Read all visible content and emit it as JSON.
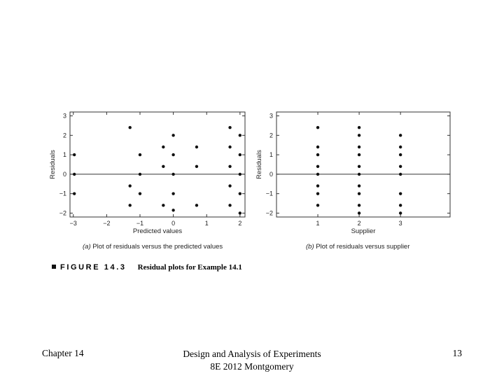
{
  "chart_data": [
    {
      "type": "scatter",
      "xlabel": "Predicted values",
      "ylabel": "Residuals",
      "xlim": [
        -3.1,
        2.15
      ],
      "ylim": [
        -2.2,
        3.2
      ],
      "xticks": [
        -3,
        -2,
        -1,
        0,
        1,
        2
      ],
      "xtick_labels": [
        "−3",
        "−2",
        "−1",
        "0",
        "1",
        "2"
      ],
      "yticks": [
        -2,
        -1,
        0,
        1,
        2,
        3
      ],
      "ytick_labels": [
        "−2",
        "−1",
        "0",
        "1",
        "2",
        "3"
      ],
      "reference_line_y": 0,
      "caption_letter": "(a)",
      "caption_text": " Plot of residuals versus the predicted values",
      "points": [
        {
          "x": -2.97,
          "y": 1.0
        },
        {
          "x": -2.97,
          "y": 0.0
        },
        {
          "x": -2.97,
          "y": -1.0
        },
        {
          "x": -1.3,
          "y": 2.4
        },
        {
          "x": -1.3,
          "y": -0.6
        },
        {
          "x": -1.3,
          "y": -1.6
        },
        {
          "x": -1.0,
          "y": 1.0
        },
        {
          "x": -1.0,
          "y": 0.0
        },
        {
          "x": -1.0,
          "y": -1.0
        },
        {
          "x": -0.3,
          "y": 1.4
        },
        {
          "x": -0.3,
          "y": 0.4
        },
        {
          "x": -0.3,
          "y": -1.6
        },
        {
          "x": 0.0,
          "y": 2.0
        },
        {
          "x": 0.0,
          "y": 1.0
        },
        {
          "x": 0.0,
          "y": 0.0
        },
        {
          "x": 0.0,
          "y": -1.0
        },
        {
          "x": 0.0,
          "y": -1.85
        },
        {
          "x": 0.7,
          "y": 1.4
        },
        {
          "x": 0.7,
          "y": 0.4
        },
        {
          "x": 0.7,
          "y": -1.6
        },
        {
          "x": 1.7,
          "y": 2.4
        },
        {
          "x": 1.7,
          "y": 1.4
        },
        {
          "x": 1.7,
          "y": 0.4
        },
        {
          "x": 1.7,
          "y": -0.6
        },
        {
          "x": 1.7,
          "y": -1.6
        },
        {
          "x": 2.0,
          "y": 2.0
        },
        {
          "x": 2.0,
          "y": 1.0
        },
        {
          "x": 2.0,
          "y": 0.0
        },
        {
          "x": 2.0,
          "y": -1.0
        },
        {
          "x": 2.0,
          "y": -2.0
        }
      ]
    },
    {
      "type": "scatter",
      "xlabel": "Supplier",
      "ylabel": "Residuals",
      "xlim": [
        0.0,
        4.2
      ],
      "ylim": [
        -2.2,
        3.2
      ],
      "xticks": [
        1,
        2,
        3
      ],
      "xtick_labels": [
        "1",
        "2",
        "3"
      ],
      "yticks": [
        -2,
        -1,
        0,
        1,
        2,
        3
      ],
      "ytick_labels": [
        "−2",
        "−1",
        "0",
        "1",
        "2",
        "3"
      ],
      "reference_line_y": 0,
      "caption_letter": "(b)",
      "caption_text": " Plot of residuals versus supplier",
      "points": [
        {
          "x": 1,
          "y": 2.4
        },
        {
          "x": 1,
          "y": 1.4
        },
        {
          "x": 1,
          "y": 1.0
        },
        {
          "x": 1,
          "y": 0.4
        },
        {
          "x": 1,
          "y": 0.0
        },
        {
          "x": 1,
          "y": -0.6
        },
        {
          "x": 1,
          "y": -1.0
        },
        {
          "x": 1,
          "y": -1.6
        },
        {
          "x": 2,
          "y": 2.4
        },
        {
          "x": 2,
          "y": 2.0
        },
        {
          "x": 2,
          "y": 1.4
        },
        {
          "x": 2,
          "y": 1.0
        },
        {
          "x": 2,
          "y": 0.4
        },
        {
          "x": 2,
          "y": 0.0
        },
        {
          "x": 2,
          "y": -0.6
        },
        {
          "x": 2,
          "y": -1.0
        },
        {
          "x": 2,
          "y": -1.6
        },
        {
          "x": 2,
          "y": -2.0
        },
        {
          "x": 3,
          "y": 2.0
        },
        {
          "x": 3,
          "y": 1.4
        },
        {
          "x": 3,
          "y": 1.0
        },
        {
          "x": 3,
          "y": 0.4
        },
        {
          "x": 3,
          "y": 0.0
        },
        {
          "x": 3,
          "y": -1.0
        },
        {
          "x": 3,
          "y": -1.6
        },
        {
          "x": 3,
          "y": -2.0
        }
      ]
    }
  ],
  "figure": {
    "label": "FIGURE 14.3",
    "description": "Residual plots for Example 14.1"
  },
  "footer": {
    "chapter": "Chapter 14",
    "title_line1": "Design and Analysis of Experiments",
    "title_line2": "8E 2012 Montgomery",
    "page_number": "13"
  }
}
